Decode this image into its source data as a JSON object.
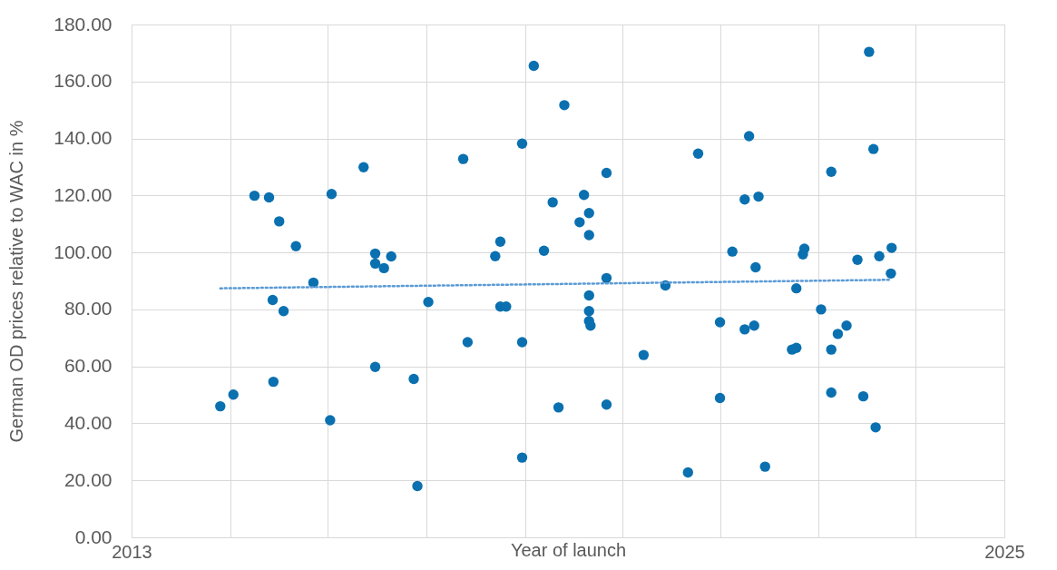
{
  "chart_data": {
    "type": "scatter",
    "xlabel": "Year of launch",
    "ylabel": "German OD prices relative to WAC in %",
    "xlim": [
      2013,
      2025
    ],
    "ylim": [
      0,
      180
    ],
    "xticks": [
      {
        "value": 2013,
        "label": "2013"
      },
      {
        "value": 2014.355,
        "label": null
      },
      {
        "value": 2015.7,
        "label": null
      },
      {
        "value": 2017.05,
        "label": null
      },
      {
        "value": 2018.41,
        "label": null
      },
      {
        "value": 2019.75,
        "label": null
      },
      {
        "value": 2021.09,
        "label": null
      },
      {
        "value": 2022.44,
        "label": null
      },
      {
        "value": 2023.78,
        "label": null
      },
      {
        "value": 2025,
        "label": "2025"
      }
    ],
    "yticks": [
      {
        "value": 0,
        "label": "0.00"
      },
      {
        "value": 20,
        "label": "20.00"
      },
      {
        "value": 40,
        "label": "40.00"
      },
      {
        "value": 60,
        "label": "60.00"
      },
      {
        "value": 80,
        "label": "80.00"
      },
      {
        "value": 100,
        "label": "100.00"
      },
      {
        "value": 120,
        "label": "120.00"
      },
      {
        "value": 140,
        "label": "140.00"
      },
      {
        "value": 160,
        "label": "160.00"
      },
      {
        "value": 180,
        "label": "180.00"
      }
    ],
    "grid": true,
    "series": [
      {
        "type": "scatter",
        "marker": "circle",
        "color": "#0a70b0",
        "x": [
          2014.22,
          2014.4,
          2014.69,
          2014.89,
          2014.94,
          2014.95,
          2015.03,
          2015.09,
          2015.26,
          2015.5,
          2015.73,
          2015.75,
          2016.19,
          2016.35,
          2016.35,
          2016.35,
          2016.47,
          2016.57,
          2016.88,
          2016.93,
          2017.08,
          2017.56,
          2017.62,
          2018.0,
          2018.07,
          2018.07,
          2018.15,
          2018.37,
          2018.37,
          2018.37,
          2018.53,
          2018.67,
          2018.79,
          2018.87,
          2018.95,
          2019.16,
          2019.22,
          2019.29,
          2019.29,
          2019.29,
          2019.29,
          2019.29,
          2019.31,
          2019.53,
          2019.53,
          2019.53,
          2020.04,
          2020.34,
          2020.65,
          2020.79,
          2021.09,
          2021.09,
          2021.26,
          2021.43,
          2021.43,
          2021.49,
          2021.56,
          2021.58,
          2021.62,
          2021.71,
          2022.08,
          2022.14,
          2022.14,
          2022.23,
          2022.25,
          2022.48,
          2022.62,
          2022.62,
          2022.62,
          2022.71,
          2022.83,
          2022.98,
          2023.06,
          2023.14,
          2023.2,
          2023.23,
          2023.28,
          2023.44,
          2023.45
        ],
        "values": [
          46.0,
          50.1,
          119.9,
          119.3,
          83.3,
          54.6,
          110.9,
          79.4,
          102.2,
          89.4,
          41.1,
          120.5,
          129.9,
          99.6,
          96.1,
          59.8,
          94.5,
          98.6,
          55.6,
          18.0,
          82.6,
          132.8,
          68.5,
          98.7,
          103.8,
          81.0,
          81.0,
          138.2,
          68.5,
          28.0,
          165.5,
          100.6,
          117.6,
          45.6,
          151.7,
          110.6,
          120.2,
          113.8,
          106.1,
          84.9,
          79.4,
          75.9,
          74.3,
          127.9,
          91.0,
          46.6,
          64.0,
          88.4,
          22.8,
          134.7,
          75.5,
          48.9,
          100.3,
          118.6,
          73.0,
          140.8,
          74.3,
          94.8,
          119.6,
          24.8,
          65.9,
          66.5,
          87.4,
          99.3,
          101.3,
          80.0,
          128.3,
          65.9,
          50.8,
          71.4,
          74.3,
          97.4,
          49.5,
          170.4,
          136.3,
          38.6,
          98.7,
          92.6,
          101.6
        ]
      },
      {
        "type": "line",
        "marker": "none",
        "line_style": "dotted",
        "color": "#5b9bd5",
        "x": [
          2014.22,
          2023.45
        ],
        "values": [
          87.4,
          90.4
        ]
      }
    ]
  }
}
